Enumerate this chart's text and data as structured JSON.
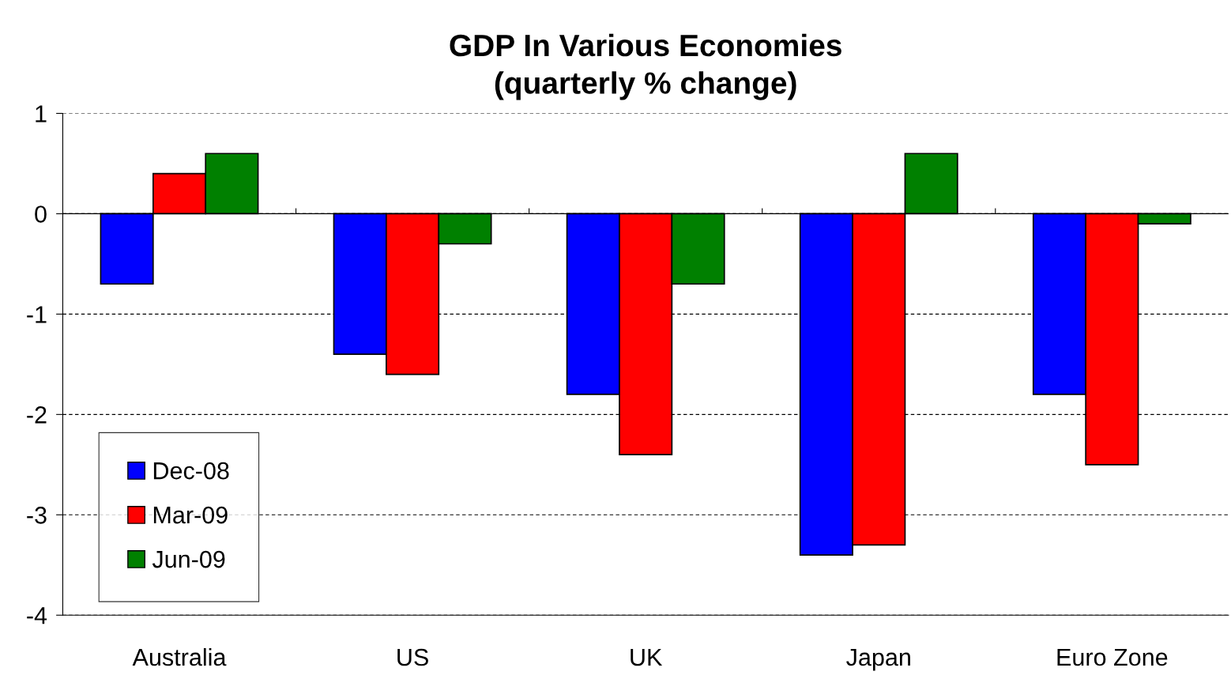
{
  "chart_data": {
    "type": "bar",
    "title": "GDP In Various Economies\n(quarterly % change)",
    "categories": [
      "Australia",
      "US",
      "UK",
      "Japan",
      "Euro Zone"
    ],
    "series": [
      {
        "name": "Dec-08",
        "color": "#0000ff",
        "values": [
          -0.7,
          -1.4,
          -1.8,
          -3.4,
          -1.8
        ]
      },
      {
        "name": "Mar-09",
        "color": "#ff0000",
        "values": [
          0.4,
          -1.6,
          -2.4,
          -3.3,
          -2.5
        ]
      },
      {
        "name": "Jun-09",
        "color": "#008000",
        "values": [
          0.6,
          -0.3,
          -0.7,
          0.6,
          -0.1
        ]
      }
    ],
    "ylim": [
      -4,
      1
    ],
    "yticks": [
      -4,
      -3,
      -2,
      -1,
      0,
      1
    ],
    "grid": "y",
    "legend": "bottom left",
    "ref_lines": [
      {
        "axis": "y",
        "value": 0,
        "color": "#000000",
        "line_style": "solid"
      }
    ]
  }
}
